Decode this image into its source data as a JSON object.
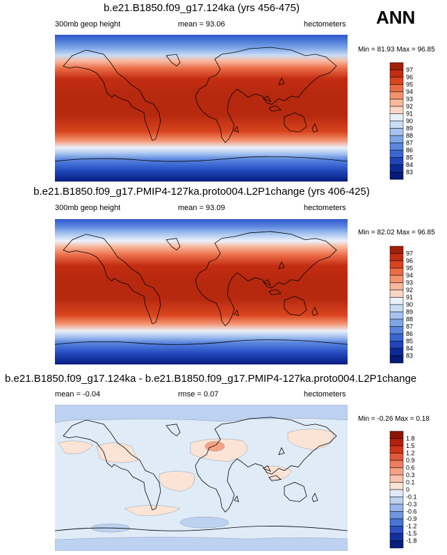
{
  "season": "ANN",
  "chart_data": [
    {
      "type": "heatmap",
      "title": "b.e21.B1850.f09_g17.124ka (yrs 456-475)",
      "left_label": "300mb geop height",
      "center_label": "mean =  93.06",
      "right_label": "hectometers",
      "min_max": "Min =  81.93 Max =  96.85",
      "mean": 93.06,
      "min": 81.93,
      "max": 96.85,
      "levels": [
        "97",
        "96",
        "95",
        "94",
        "93",
        "92",
        "91",
        "90",
        "89",
        "88",
        "87",
        "86",
        "85",
        "84",
        "83"
      ],
      "colors": [
        "#a1200a",
        "#c42d12",
        "#d9441f",
        "#ea6c47",
        "#f4926f",
        "#f9b79c",
        "#fcd7c7",
        "#eaf1fb",
        "#c9dcf5",
        "#a6c3ef",
        "#7ea6e7",
        "#5b86dd",
        "#3a66d2",
        "#1f45b8",
        "#0c2a97",
        "#061a7a"
      ],
      "axis_range": {
        "longitude": [
          -180,
          180
        ],
        "latitude": [
          -90,
          90
        ]
      }
    },
    {
      "type": "heatmap",
      "title": "b.e21.B1850.f09_g17.PMIP4-127ka.proto004.L2P1change (yrs 406-425)",
      "left_label": "300mb geop height",
      "center_label": "mean =  93.09",
      "right_label": "hectometers",
      "min_max": "Min =  82.02 Max =  96.85",
      "mean": 93.09,
      "min": 82.02,
      "max": 96.85,
      "levels": [
        "97",
        "96",
        "95",
        "94",
        "93",
        "92",
        "91",
        "90",
        "89",
        "88",
        "87",
        "86",
        "85",
        "84",
        "83"
      ],
      "colors": [
        "#a1200a",
        "#c42d12",
        "#d9441f",
        "#ea6c47",
        "#f4926f",
        "#f9b79c",
        "#fcd7c7",
        "#eaf1fb",
        "#c9dcf5",
        "#a6c3ef",
        "#7ea6e7",
        "#5b86dd",
        "#3a66d2",
        "#1f45b8",
        "#0c2a97",
        "#061a7a"
      ],
      "axis_range": {
        "longitude": [
          -180,
          180
        ],
        "latitude": [
          -90,
          90
        ]
      }
    },
    {
      "type": "heatmap",
      "title": "b.e21.B1850.f09_g17.124ka - b.e21.B1850.f09_g17.PMIP4-127ka.proto004.L2P1change",
      "left_label": "mean =  -0.04",
      "center_label": "rmse =  0.07",
      "right_label": "hectometers",
      "min_max": "Min =  -0.26 Max =   0.18",
      "mean": -0.04,
      "rmse": 0.07,
      "min": -0.26,
      "max": 0.18,
      "levels": [
        "1.8",
        "1.5",
        "1.2",
        "0.9",
        "0.6",
        "0.3",
        "0.1",
        "0",
        "-0.1",
        "-0.3",
        "-0.6",
        "-0.9",
        "-1.2",
        "-1.5",
        "-1.8"
      ],
      "colors": [
        "#8a1505",
        "#b3200d",
        "#cf3518",
        "#e4573a",
        "#ef7d5e",
        "#f5a384",
        "#fac3ad",
        "#fbe3d5",
        "#e0ebf8",
        "#bdd2f1",
        "#97b6e9",
        "#6f96e0",
        "#4a74d5",
        "#2c51c2",
        "#1331a0",
        "#081d80"
      ],
      "axis_range": {
        "longitude": [
          -180,
          180
        ],
        "latitude": [
          -90,
          90
        ]
      }
    }
  ]
}
